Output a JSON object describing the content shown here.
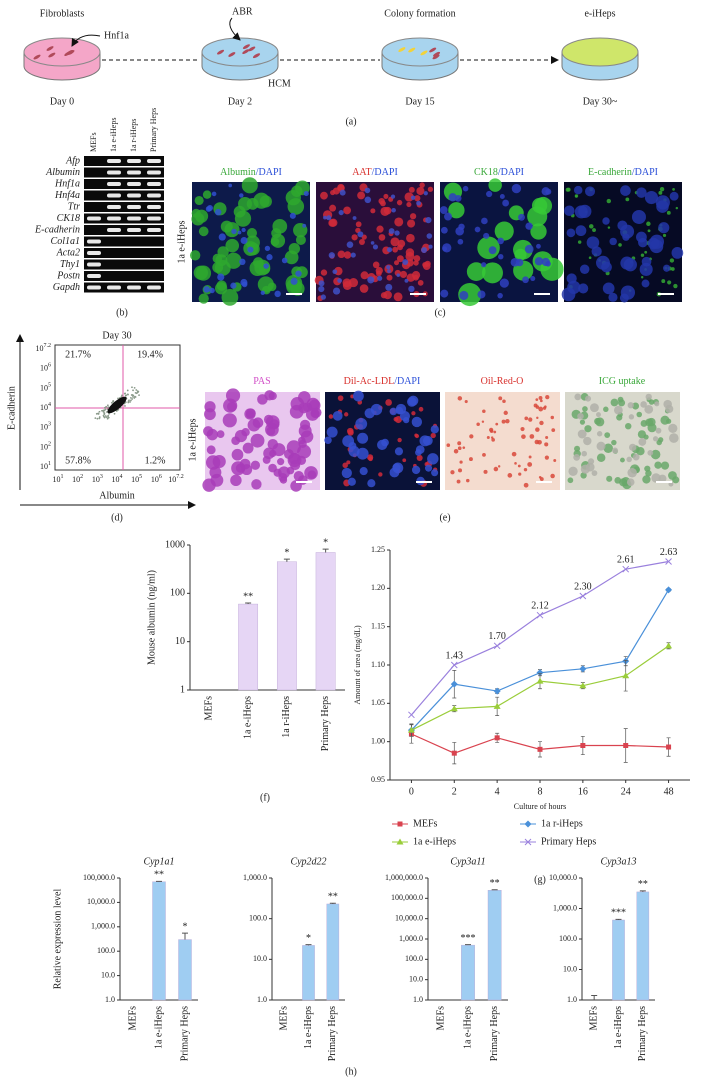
{
  "panel_labels": [
    "(a)",
    "(b)",
    "(c)",
    "(d)",
    "(e)",
    "(f)",
    "(g)",
    "(h)"
  ],
  "schematic": {
    "stages": [
      {
        "name": "Fibroblasts",
        "day": "Day 0"
      },
      {
        "day": "Day 2"
      },
      {
        "name": "Colony formation",
        "day": "Day 15"
      },
      {
        "name": "e-iHeps",
        "day": "Day 30~"
      }
    ],
    "factor": "Hnf1a",
    "compounds": "ABR",
    "medium": "HCM"
  },
  "gel": {
    "lanes": [
      "MEFs",
      "1a e-iHeps",
      "1a r-iHeps",
      "Primary Heps"
    ],
    "genes": [
      "Afp",
      "Albumin",
      "Hnf1a",
      "Hnf4a",
      "Ttr",
      "CK18",
      "E-cadherin",
      "Col1a1",
      "Acta2",
      "Thy1",
      "Postn",
      "Gapdh"
    ]
  },
  "staining": {
    "row_label": "1a e-iHeps",
    "images": [
      {
        "stain": "Albumin",
        "counter": "/DAPI",
        "color": "#3aa83a"
      },
      {
        "stain": "AAT",
        "counter": "/DAPI",
        "color": "#d8302c"
      },
      {
        "stain": "CK18",
        "counter": "/DAPI",
        "color": "#3aa83a"
      },
      {
        "stain": "E-cadherin",
        "counter": "/DAPI",
        "color": "#3aa83a"
      }
    ]
  },
  "flow": {
    "title": "Day 30",
    "x_label": "Albumin",
    "y_label": "E-cadherin",
    "quadrants": [
      "21.7%",
      "19.4%",
      "57.8%",
      "1.2%"
    ],
    "tick_base": "10",
    "tick_exponents": [
      "1",
      "2",
      "3",
      "4",
      "5",
      "6",
      "7.2"
    ]
  },
  "functions": {
    "row_label": "1a e-iHeps",
    "images": [
      {
        "stain": "PAS",
        "color": "#d24fc8"
      },
      {
        "stain": "Dil-Ac-LDL",
        "counter": "/DAPI",
        "color": "#d8302c"
      },
      {
        "stain": "Oil-Red-O",
        "color": "#d8302c"
      },
      {
        "stain": "ICG uptake",
        "color": "#3aa83a"
      }
    ]
  },
  "chart_data": [
    {
      "type": "bar",
      "y_label": "Mouse albumin (ng/ml)",
      "categories": [
        "MEFs",
        "1a e-iHeps",
        "1a r-iHeps",
        "Primary Heps"
      ],
      "values": [
        null,
        60,
        450,
        700
      ],
      "errors": [
        null,
        3,
        60,
        120
      ],
      "significance": [
        null,
        "**",
        "*",
        "*"
      ],
      "color": "#e6d6f5",
      "log_y": true,
      "ylim": [
        1,
        1000
      ],
      "yticks": [
        1,
        10,
        100,
        1000
      ]
    },
    {
      "type": "line",
      "y_label": "Amount of urea (mg/dL)",
      "x_label": "Culture of hours",
      "categories": [
        "0",
        "2",
        "4",
        "8",
        "16",
        "24",
        "48"
      ],
      "ylim": [
        0.95,
        1.25
      ],
      "yticks": [
        0.95,
        {
          "value": 1,
          "label": "1.00"
        },
        1.05,
        {
          "value": 1.1,
          "label": "1.10"
        },
        1.15,
        {
          "value": 1.2,
          "label": "1.20"
        },
        1.25
      ],
      "legend": "bottom",
      "series": [
        {
          "name": "MEFs",
          "color": "#d9434f",
          "marker": "square",
          "values": [
            1.01,
            0.985,
            1.005,
            0.99,
            0.995,
            0.995,
            0.993
          ],
          "errors": [
            0.012,
            0.014,
            0.006,
            0.01,
            0.012,
            0.022,
            0.012
          ]
        },
        {
          "name": "1a r-iHeps",
          "color": "#4a90d9",
          "marker": "diamond",
          "values": [
            1.015,
            1.075,
            1.066,
            1.09,
            1.095,
            1.105,
            1.198
          ],
          "errors": [
            0.008,
            0.018,
            0.003,
            0.004,
            0.004,
            0.006,
            0.002
          ]
        },
        {
          "name": "1a e-iHeps",
          "color": "#9acd3a",
          "marker": "triangle",
          "values": [
            1.015,
            1.043,
            1.046,
            1.079,
            1.073,
            1.086,
            1.125
          ],
          "errors": [
            0.008,
            0.004,
            0.012,
            0.01,
            0.004,
            0.02,
            0.004
          ]
        },
        {
          "name": "Primary Heps",
          "color": "#9a80dd",
          "marker": "x",
          "values": [
            1.035,
            1.1,
            1.125,
            1.165,
            1.19,
            1.225,
            1.235
          ],
          "point_labels": [
            null,
            "1.43",
            "1.70",
            "2.12",
            "2.30",
            "2.61",
            "2.63"
          ]
        }
      ]
    },
    {
      "type": "bar",
      "title": "Cyp1a1",
      "y_label": "Relative expression level",
      "categories": [
        "MEFs",
        "1a e-iHeps",
        "Primary Heps"
      ],
      "values": [
        1,
        70000,
        300
      ],
      "errors": [
        null,
        3000,
        250
      ],
      "significance": [
        null,
        "**",
        "*"
      ],
      "color": "#9fcdf2",
      "log_y": true,
      "ylim": [
        1,
        100000
      ],
      "yticks": [
        {
          "value": 1,
          "label": "1.0"
        },
        {
          "value": 10,
          "label": "10.0"
        },
        {
          "value": 100,
          "label": "100.0"
        },
        {
          "value": 1000,
          "label": "1,000.0"
        },
        {
          "value": 10000,
          "label": "10,000.0"
        },
        {
          "value": 100000,
          "label": "100,000.0"
        }
      ]
    },
    {
      "type": "bar",
      "title": "Cyp2d22",
      "categories": [
        "MEFs",
        "1a e-iHeps",
        "Primary Heps"
      ],
      "values": [
        1,
        22,
        230
      ],
      "errors": [
        null,
        1,
        10
      ],
      "significance": [
        null,
        "*",
        "**"
      ],
      "color": "#9fcdf2",
      "log_y": true,
      "ylim": [
        1,
        1000
      ],
      "yticks": [
        {
          "value": 1,
          "label": "1.0"
        },
        {
          "value": 10,
          "label": "10.0"
        },
        {
          "value": 100,
          "label": "100.0"
        },
        {
          "value": 1000,
          "label": "1,000.0"
        }
      ]
    },
    {
      "type": "bar",
      "title": "Cyp3a11",
      "categories": [
        "MEFs",
        "1a e-iHeps",
        "Primary Heps"
      ],
      "values": [
        1,
        500,
        250000
      ],
      "errors": [
        null,
        30,
        15000
      ],
      "significance": [
        null,
        "***",
        "**"
      ],
      "color": "#9fcdf2",
      "log_y": true,
      "ylim": [
        1,
        1000000
      ],
      "yticks": [
        {
          "value": 1,
          "label": "1.0"
        },
        {
          "value": 10,
          "label": "10.0"
        },
        {
          "value": 100,
          "label": "100.0"
        },
        {
          "value": 1000,
          "label": "1,000.0"
        },
        {
          "value": 10000,
          "label": "10,000.0"
        },
        {
          "value": 100000,
          "label": "100,000.0"
        },
        {
          "value": 1000000,
          "label": "1,000,000.0"
        }
      ]
    },
    {
      "type": "bar",
      "title": "Cyp3a13",
      "categories": [
        "MEFs",
        "1a e-iHeps",
        "Primary Heps"
      ],
      "values": [
        1,
        420,
        3500
      ],
      "errors": [
        0.4,
        20,
        300
      ],
      "significance": [
        null,
        "***",
        "**"
      ],
      "color": "#9fcdf2",
      "log_y": true,
      "ylim": [
        1,
        10000
      ],
      "yticks": [
        {
          "value": 1,
          "label": "1.0"
        },
        {
          "value": 10,
          "label": "10.0"
        },
        {
          "value": 100,
          "label": "100.0"
        },
        {
          "value": 1000,
          "label": "1,000.0"
        },
        {
          "value": 10000,
          "label": "10,000.0"
        }
      ]
    }
  ]
}
